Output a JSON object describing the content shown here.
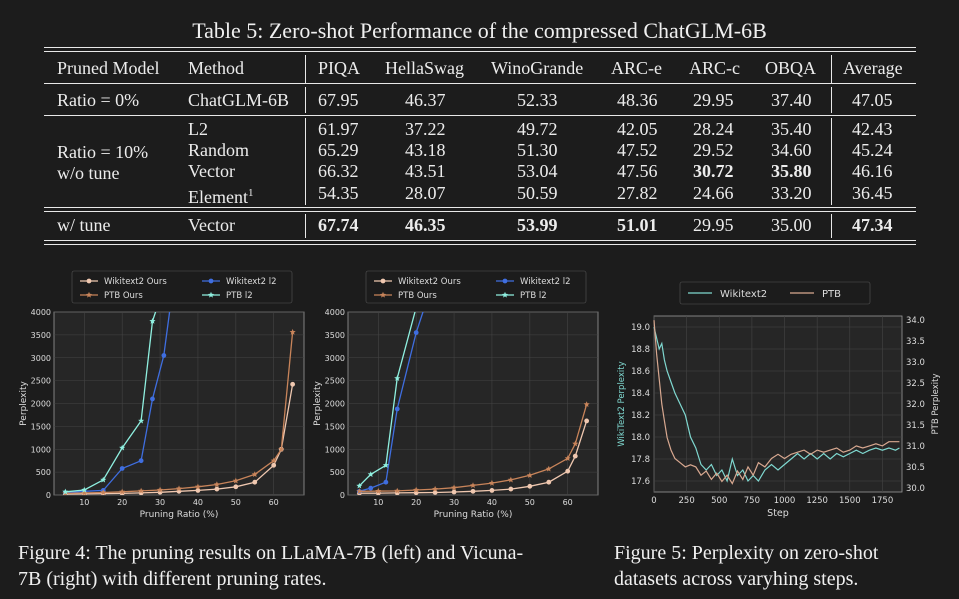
{
  "table": {
    "title": "Table 5: Zero-shot Performance of the compressed ChatGLM-6B",
    "headers": [
      "Pruned Model",
      "Method",
      "PIQA",
      "HellaSwag",
      "WinoGrande",
      "ARC-e",
      "ARC-c",
      "OBQA",
      "Average"
    ],
    "baseline": {
      "ratio": "Ratio = 0%",
      "method": "ChatGLM-6B",
      "values": [
        "67.95",
        "46.37",
        "52.33",
        "48.36",
        "29.95",
        "37.40",
        "47.05"
      ]
    },
    "group10": {
      "ratio_line1": "Ratio = 10%",
      "ratio_line2": "w/o tune",
      "rows": [
        {
          "method": "L2",
          "sup": "",
          "values": [
            "61.97",
            "37.22",
            "49.72",
            "42.05",
            "28.24",
            "35.40",
            "42.43"
          ]
        },
        {
          "method": "Random",
          "sup": "",
          "values": [
            "65.29",
            "43.18",
            "51.30",
            "47.52",
            "29.52",
            "34.60",
            "45.24"
          ]
        },
        {
          "method": "Vector",
          "sup": "",
          "values": [
            "66.32",
            "43.51",
            "53.04",
            "47.56",
            "30.72",
            "35.80",
            "46.16"
          ]
        },
        {
          "method": "Element",
          "sup": "1",
          "values": [
            "54.35",
            "28.07",
            "50.59",
            "27.82",
            "24.66",
            "33.20",
            "36.45"
          ]
        }
      ]
    },
    "tune": {
      "ratio": "w/ tune",
      "method": "Vector",
      "values": [
        "67.74",
        "46.35",
        "53.99",
        "51.01",
        "29.95",
        "35.00",
        "47.34"
      ]
    }
  },
  "captions": {
    "fig4_line1": "Figure 4: The pruning results on LLaMA-7B (left) and Vicuna-",
    "fig4_line2": "7B (right) with different pruning rates.",
    "fig5_line1": "Figure 5:  Perplexity on zero-shot",
    "fig5_line2": "datasets across varyhing steps."
  },
  "chart_data": [
    {
      "type": "line",
      "xlabel": "Pruning Ratio (%)",
      "ylabel": "Perplexity",
      "xlim": [
        2,
        68
      ],
      "ylim": [
        0,
        4000
      ],
      "xticks": [
        10,
        20,
        30,
        40,
        50,
        60
      ],
      "yticks": [
        0,
        500,
        1000,
        1500,
        2000,
        2500,
        3000,
        3500,
        4000
      ],
      "legend": "top",
      "series": [
        {
          "name": "Wikitext2 Ours",
          "color": "#f0c8b0",
          "marker": "circle",
          "x": [
            5,
            10,
            15,
            20,
            25,
            30,
            35,
            40,
            45,
            50,
            55,
            60,
            62,
            65
          ],
          "y": [
            20,
            25,
            30,
            35,
            45,
            60,
            80,
            100,
            130,
            180,
            280,
            650,
            1000,
            2420
          ]
        },
        {
          "name": "Wikitext2 l2",
          "color": "#3f6ee0",
          "marker": "circle",
          "x": [
            5,
            10,
            15,
            20,
            25,
            28,
            31,
            33
          ],
          "y": [
            50,
            80,
            100,
            580,
            750,
            2100,
            3050,
            4300
          ]
        },
        {
          "name": "PTB Ours",
          "color": "#c8845a",
          "marker": "star",
          "x": [
            5,
            10,
            15,
            20,
            25,
            30,
            35,
            40,
            45,
            50,
            55,
            60,
            62,
            65
          ],
          "y": [
            35,
            45,
            55,
            70,
            90,
            110,
            140,
            180,
            230,
            310,
            450,
            750,
            1000,
            3560
          ]
        },
        {
          "name": "PTB l2",
          "color": "#8ff0e0",
          "marker": "star",
          "x": [
            5,
            10,
            15,
            20,
            25,
            28,
            30
          ],
          "y": [
            70,
            110,
            330,
            1030,
            1620,
            3800,
            4300
          ]
        }
      ]
    },
    {
      "type": "line",
      "xlabel": "Pruning Ratio (%)",
      "ylabel": "Perplexity",
      "xlim": [
        2,
        68
      ],
      "ylim": [
        0,
        4000
      ],
      "xticks": [
        10,
        20,
        30,
        40,
        50,
        60
      ],
      "yticks": [
        0,
        500,
        1000,
        1500,
        2000,
        2500,
        3000,
        3500,
        4000
      ],
      "legend": "top",
      "series": [
        {
          "name": "Wikitext2 Ours",
          "color": "#f0c8b0",
          "marker": "circle",
          "x": [
            5,
            10,
            15,
            20,
            25,
            30,
            35,
            40,
            45,
            50,
            55,
            60,
            62,
            65
          ],
          "y": [
            40,
            40,
            45,
            50,
            55,
            65,
            80,
            100,
            130,
            190,
            280,
            520,
            850,
            1620
          ]
        },
        {
          "name": "Wikitext2 l2",
          "color": "#3f6ee0",
          "marker": "circle",
          "x": [
            5,
            8,
            12,
            15,
            20,
            23
          ],
          "y": [
            80,
            150,
            280,
            1880,
            3550,
            4300
          ]
        },
        {
          "name": "PTB Ours",
          "color": "#c8845a",
          "marker": "star",
          "x": [
            5,
            10,
            15,
            20,
            25,
            30,
            35,
            40,
            45,
            50,
            55,
            60,
            62,
            65
          ],
          "y": [
            80,
            85,
            90,
            110,
            130,
            160,
            210,
            260,
            330,
            430,
            570,
            800,
            1120,
            1980
          ]
        },
        {
          "name": "PTB l2",
          "color": "#8ff0e0",
          "marker": "star",
          "x": [
            5,
            8,
            12,
            15,
            20,
            23
          ],
          "y": [
            200,
            450,
            650,
            2550,
            4100,
            4400
          ]
        }
      ]
    },
    {
      "type": "line",
      "xlabel": "Step",
      "ylabel": "WikiText2 Perplexity",
      "ylabel_right": "PTB Perplexity",
      "xlim": [
        0,
        1900
      ],
      "ylim": [
        17.5,
        19.1
      ],
      "ylim_right": [
        29.9,
        34.1
      ],
      "xticks": [
        0,
        250,
        500,
        750,
        1000,
        1250,
        1500,
        1750
      ],
      "yticks": [
        17.6,
        17.8,
        18.0,
        18.2,
        18.4,
        18.6,
        18.8,
        19.0
      ],
      "yticks_right": [
        30.0,
        30.5,
        31.0,
        31.5,
        32.0,
        32.5,
        33.0,
        33.5,
        34.0
      ],
      "legend": "top",
      "series": [
        {
          "name": "Wikitext2",
          "axis": "left",
          "color": "#7fd8d0",
          "x": [
            0,
            20,
            40,
            60,
            80,
            100,
            130,
            160,
            200,
            240,
            280,
            320,
            360,
            400,
            440,
            480,
            520,
            560,
            600,
            640,
            680,
            720,
            760,
            800,
            850,
            900,
            950,
            1000,
            1050,
            1100,
            1150,
            1200,
            1250,
            1300,
            1350,
            1400,
            1450,
            1500,
            1550,
            1600,
            1650,
            1700,
            1750,
            1800,
            1850,
            1880
          ],
          "y": [
            19.0,
            18.9,
            18.8,
            18.85,
            18.7,
            18.6,
            18.5,
            18.4,
            18.3,
            18.2,
            18.0,
            17.9,
            17.75,
            17.7,
            17.75,
            17.65,
            17.7,
            17.6,
            17.8,
            17.65,
            17.7,
            17.6,
            17.65,
            17.6,
            17.7,
            17.75,
            17.7,
            17.75,
            17.8,
            17.85,
            17.8,
            17.85,
            17.8,
            17.85,
            17.8,
            17.85,
            17.82,
            17.85,
            17.88,
            17.85,
            17.88,
            17.9,
            17.88,
            17.9,
            17.88,
            17.9
          ]
        },
        {
          "name": "PTB",
          "axis": "right",
          "color": "#d8a890",
          "x": [
            0,
            20,
            40,
            60,
            80,
            100,
            130,
            160,
            200,
            240,
            280,
            320,
            360,
            400,
            440,
            480,
            520,
            560,
            600,
            640,
            680,
            720,
            760,
            800,
            850,
            900,
            950,
            1000,
            1050,
            1100,
            1150,
            1200,
            1250,
            1300,
            1350,
            1400,
            1450,
            1500,
            1550,
            1600,
            1650,
            1700,
            1750,
            1800,
            1850,
            1880
          ],
          "y": [
            34.0,
            33.2,
            32.6,
            32.0,
            31.6,
            31.2,
            30.9,
            30.7,
            30.6,
            30.5,
            30.55,
            30.5,
            30.3,
            30.4,
            30.2,
            30.35,
            30.15,
            30.3,
            30.1,
            30.4,
            30.2,
            30.5,
            30.3,
            30.6,
            30.5,
            30.7,
            30.8,
            30.7,
            30.8,
            30.85,
            30.9,
            30.8,
            30.9,
            30.85,
            30.9,
            30.95,
            30.85,
            30.9,
            31.0,
            30.95,
            31.0,
            31.05,
            31.0,
            31.1,
            31.1,
            31.1
          ]
        }
      ]
    }
  ]
}
